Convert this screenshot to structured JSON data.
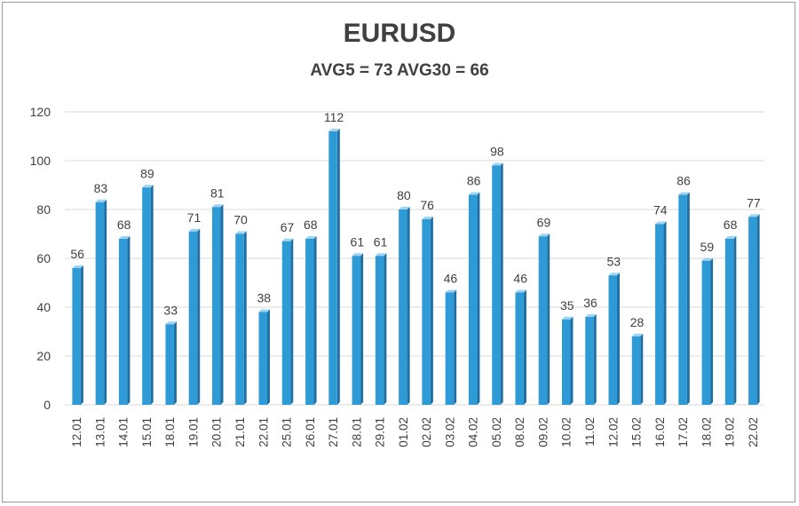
{
  "chart_data": {
    "type": "bar",
    "title": "EURUSD",
    "subtitle": "AVG5 = 73 AVG30 = 66",
    "categories": [
      "12.01",
      "13.01",
      "14.01",
      "15.01",
      "18.01",
      "19.01",
      "20.01",
      "21.01",
      "22.01",
      "25.01",
      "26.01",
      "27.01",
      "28.01",
      "29.01",
      "01.02",
      "02.02",
      "03.02",
      "04.02",
      "05.02",
      "08.02",
      "09.02",
      "10.02",
      "11.02",
      "12.02",
      "15.02",
      "16.02",
      "17.02",
      "18.02",
      "19.02",
      "22.02"
    ],
    "values": [
      56,
      83,
      68,
      89,
      33,
      71,
      81,
      70,
      38,
      67,
      68,
      112,
      61,
      61,
      80,
      76,
      46,
      86,
      98,
      46,
      69,
      35,
      36,
      53,
      28,
      74,
      86,
      59,
      68,
      77
    ],
    "ylim": [
      0,
      120
    ],
    "yticks": [
      0,
      20,
      40,
      60,
      80,
      100,
      120
    ],
    "grid": true,
    "legend": "none",
    "colors": {
      "bar": "#2e9bd6",
      "bar_dark": "#1f6fa3",
      "bar_top": "#9fd3f2",
      "grid": "#d9d9d9",
      "text": "#404040"
    }
  }
}
